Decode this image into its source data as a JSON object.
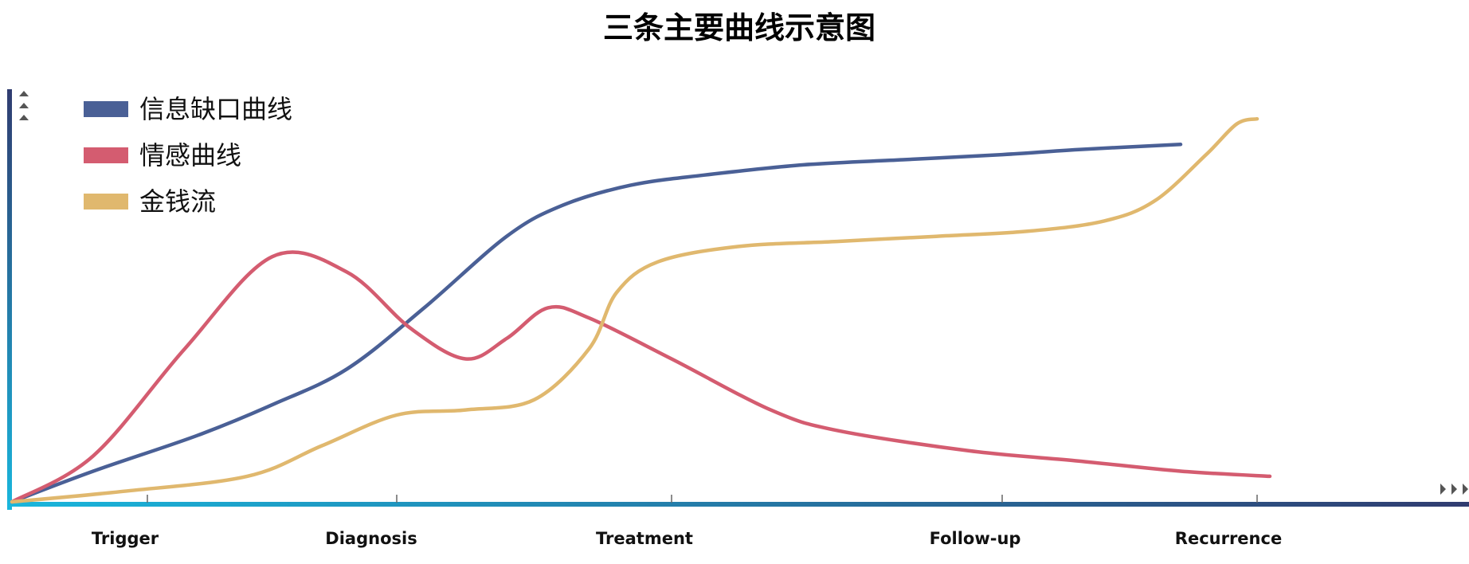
{
  "chart_data": {
    "type": "line",
    "title": "三条主要曲线示意图",
    "xlabel": "",
    "ylabel": "",
    "categories": [
      "Trigger",
      "Diagnosis",
      "Treatment",
      "Follow-up",
      "Recurrence"
    ],
    "grid": false,
    "legend_placement": "top-left",
    "series": [
      {
        "name": "信息缺口曲线",
        "color": "#4a6096",
        "points": [
          [
            0.0,
            0.0
          ],
          [
            0.3,
            0.06
          ],
          [
            0.7,
            0.13
          ],
          [
            1.0,
            0.19
          ],
          [
            1.3,
            0.26
          ],
          [
            1.6,
            0.38
          ],
          [
            1.9,
            0.52
          ],
          [
            2.1,
            0.58
          ],
          [
            2.35,
            0.62
          ],
          [
            2.6,
            0.64
          ],
          [
            2.9,
            0.66
          ],
          [
            3.2,
            0.67
          ],
          [
            3.5,
            0.68
          ],
          [
            3.8,
            0.69
          ],
          [
            4.2,
            0.7
          ]
        ]
      },
      {
        "name": "情感曲线",
        "color": "#d45c70",
        "points": [
          [
            0.0,
            0.0
          ],
          [
            0.3,
            0.09
          ],
          [
            0.65,
            0.3
          ],
          [
            1.0,
            0.48
          ],
          [
            1.3,
            0.45
          ],
          [
            1.55,
            0.34
          ],
          [
            1.75,
            0.28
          ],
          [
            1.9,
            0.32
          ],
          [
            2.05,
            0.38
          ],
          [
            2.2,
            0.36
          ],
          [
            2.5,
            0.28
          ],
          [
            2.8,
            0.18
          ],
          [
            3.0,
            0.14
          ],
          [
            3.4,
            0.1
          ],
          [
            3.8,
            0.08
          ],
          [
            4.2,
            0.06
          ],
          [
            4.55,
            0.05
          ]
        ]
      },
      {
        "name": "金钱流",
        "color": "#e0b86e",
        "points": [
          [
            0.0,
            0.0
          ],
          [
            0.4,
            0.02
          ],
          [
            0.9,
            0.05
          ],
          [
            1.2,
            0.11
          ],
          [
            1.5,
            0.17
          ],
          [
            1.75,
            0.18
          ],
          [
            2.0,
            0.2
          ],
          [
            2.2,
            0.3
          ],
          [
            2.3,
            0.41
          ],
          [
            2.45,
            0.47
          ],
          [
            2.7,
            0.5
          ],
          [
            3.0,
            0.51
          ],
          [
            3.3,
            0.52
          ],
          [
            3.6,
            0.53
          ],
          [
            3.9,
            0.55
          ],
          [
            4.1,
            0.59
          ],
          [
            4.3,
            0.68
          ],
          [
            4.42,
            0.74
          ],
          [
            4.5,
            0.75
          ]
        ]
      }
    ]
  }
}
